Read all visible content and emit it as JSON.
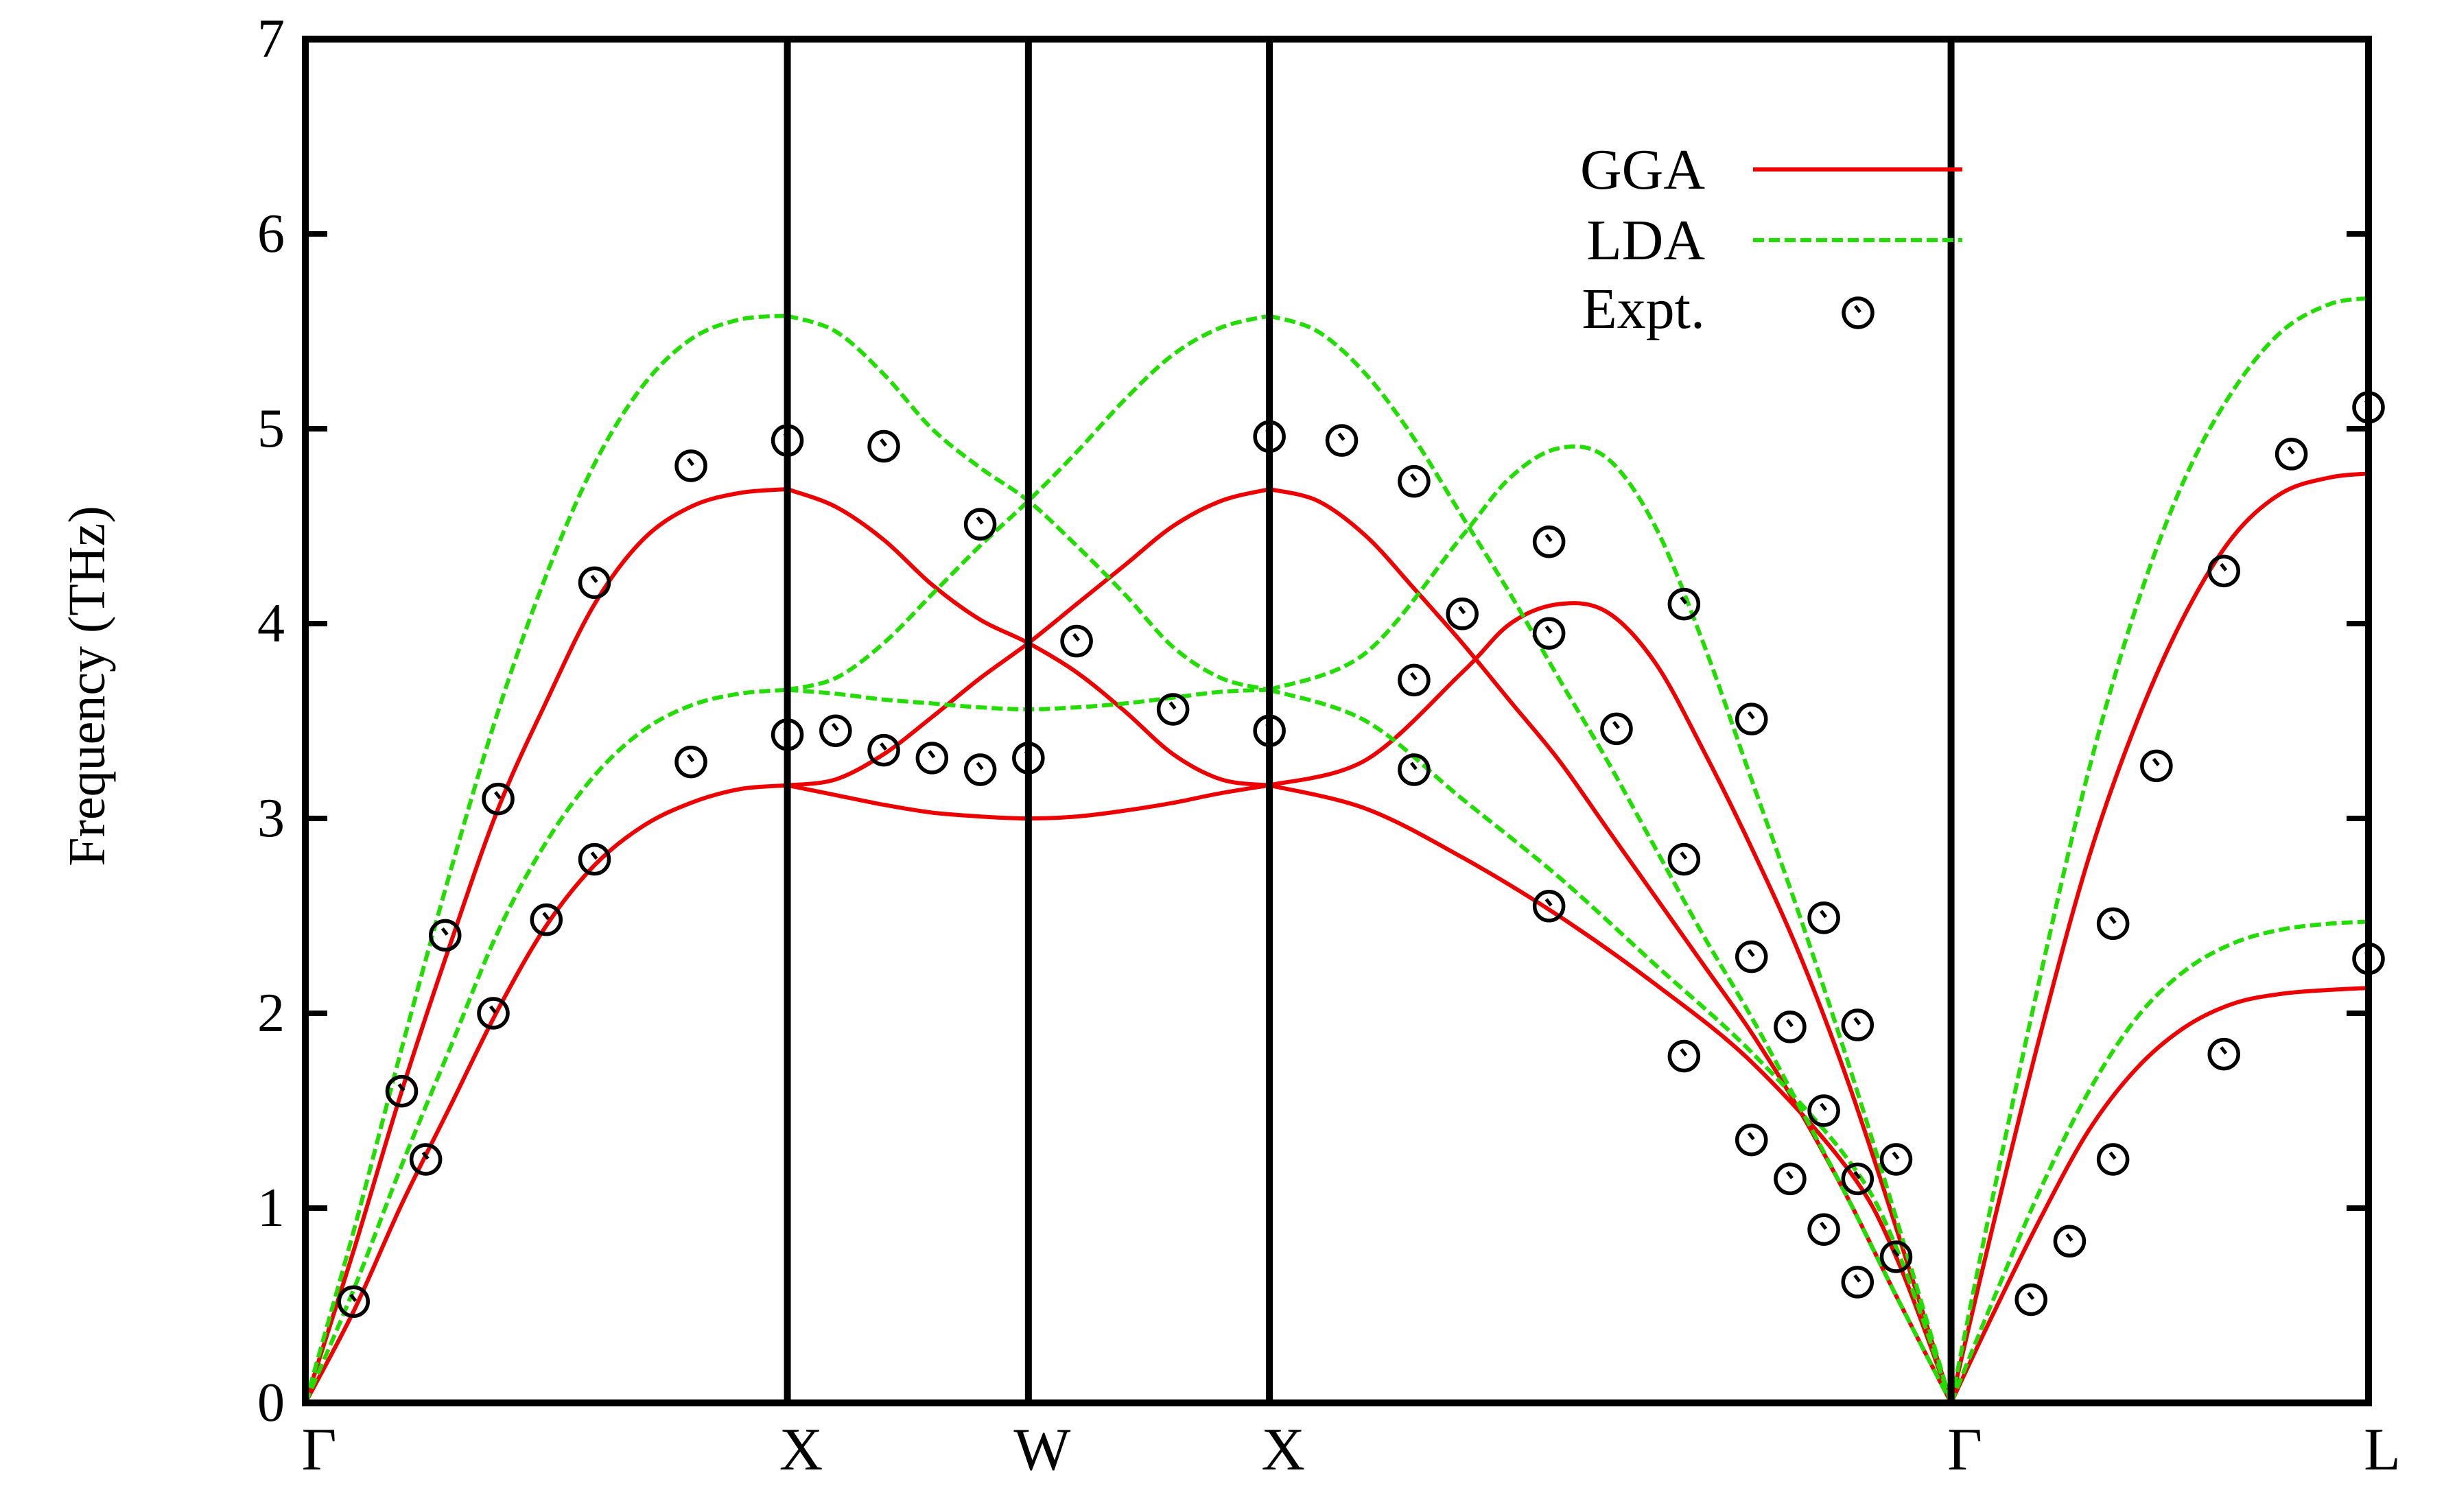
{
  "chart_data": {
    "type": "line",
    "title": "",
    "xlabel": "",
    "ylabel": "Frequency (THz)",
    "ylim": [
      0,
      7
    ],
    "y_ticks": [
      "0",
      "1",
      "2",
      "3",
      "4",
      "5",
      "6",
      "7"
    ],
    "x_ticks": [
      {
        "label": "Γ",
        "x": 0
      },
      {
        "label": "X",
        "x": 1
      },
      {
        "label": "W",
        "x": 1.5
      },
      {
        "label": "X",
        "x": 2
      },
      {
        "label": "Γ",
        "x": 3.414
      },
      {
        "label": "L",
        "x": 4.28
      }
    ],
    "xlim": [
      0,
      4.28
    ],
    "grid": false,
    "legend_position": "top-right",
    "legend": [
      {
        "label": "GGA",
        "color": "#ee0000",
        "style": "solid"
      },
      {
        "label": "LDA",
        "color": "#22dd00",
        "style": "dashed"
      },
      {
        "label": "Expt.",
        "color": "#000000",
        "style": "circle"
      }
    ],
    "colors": {
      "GGA": "#ee0000",
      "LDA": "#22dd00",
      "Expt.": "#000000",
      "axes": "#000000"
    },
    "series": [
      {
        "name": "GGA",
        "kind": "line",
        "points": [
          [
            0,
            0
          ],
          [
            0.1,
            0.47
          ],
          [
            0.2,
            1.02
          ],
          [
            0.3,
            1.52
          ],
          [
            0.4,
            2.02
          ],
          [
            0.5,
            2.45
          ],
          [
            0.6,
            2.76
          ],
          [
            0.7,
            2.96
          ],
          [
            0.8,
            3.08
          ],
          [
            0.9,
            3.15
          ],
          [
            1,
            3.17
          ]
        ]
      },
      {
        "name": "GGA",
        "kind": "line",
        "points": [
          [
            0,
            0
          ],
          [
            0.1,
            0.78
          ],
          [
            0.2,
            1.6
          ],
          [
            0.3,
            2.35
          ],
          [
            0.4,
            3.05
          ],
          [
            0.5,
            3.6
          ],
          [
            0.6,
            4.1
          ],
          [
            0.7,
            4.43
          ],
          [
            0.8,
            4.6
          ],
          [
            0.9,
            4.67
          ],
          [
            1,
            4.69
          ]
        ]
      },
      {
        "name": "GGA",
        "kind": "line",
        "points": [
          [
            1,
            3.17
          ],
          [
            1.1,
            3.12
          ],
          [
            1.2,
            3.07
          ],
          [
            1.3,
            3.03
          ],
          [
            1.4,
            3.01
          ],
          [
            1.5,
            3.0
          ],
          [
            1.6,
            3.01
          ],
          [
            1.7,
            3.04
          ],
          [
            1.8,
            3.08
          ],
          [
            1.9,
            3.13
          ],
          [
            2,
            3.17
          ]
        ]
      },
      {
        "name": "GGA",
        "kind": "line",
        "points": [
          [
            1,
            3.17
          ],
          [
            1.1,
            3.2
          ],
          [
            1.2,
            3.33
          ],
          [
            1.3,
            3.52
          ],
          [
            1.4,
            3.72
          ],
          [
            1.5,
            3.9
          ],
          [
            1.6,
            4.1
          ],
          [
            1.7,
            4.3
          ],
          [
            1.8,
            4.5
          ],
          [
            1.9,
            4.63
          ],
          [
            2,
            4.69
          ]
        ]
      },
      {
        "name": "GGA",
        "kind": "line",
        "points": [
          [
            1,
            4.69
          ],
          [
            1.1,
            4.6
          ],
          [
            1.2,
            4.43
          ],
          [
            1.3,
            4.2
          ],
          [
            1.4,
            4.02
          ],
          [
            1.5,
            3.9
          ],
          [
            1.6,
            3.75
          ],
          [
            1.7,
            3.55
          ],
          [
            1.8,
            3.33
          ],
          [
            1.9,
            3.2
          ],
          [
            2,
            3.17
          ]
        ]
      },
      {
        "name": "GGA",
        "kind": "line",
        "points": [
          [
            2,
            3.17
          ],
          [
            2.2,
            3.05
          ],
          [
            2.4,
            2.8
          ],
          [
            2.6,
            2.5
          ],
          [
            2.8,
            2.15
          ],
          [
            3,
            1.75
          ],
          [
            3.2,
            1.2
          ],
          [
            3.3,
            0.75
          ],
          [
            3.414,
            0
          ]
        ]
      },
      {
        "name": "GGA",
        "kind": "line",
        "points": [
          [
            2,
            4.69
          ],
          [
            2.1,
            4.63
          ],
          [
            2.2,
            4.45
          ],
          [
            2.3,
            4.18
          ],
          [
            2.4,
            3.9
          ],
          [
            2.5,
            3.6
          ],
          [
            2.6,
            3.3
          ],
          [
            2.7,
            2.95
          ],
          [
            2.8,
            2.6
          ],
          [
            2.9,
            2.25
          ],
          [
            3,
            1.9
          ],
          [
            3.1,
            1.5
          ],
          [
            3.2,
            1.05
          ],
          [
            3.3,
            0.55
          ],
          [
            3.414,
            0
          ]
        ]
      },
      {
        "name": "GGA",
        "kind": "line",
        "points": [
          [
            2,
            3.17
          ],
          [
            2.2,
            3.3
          ],
          [
            2.4,
            3.75
          ],
          [
            2.5,
            4.0
          ],
          [
            2.6,
            4.1
          ],
          [
            2.7,
            4.06
          ],
          [
            2.8,
            3.8
          ],
          [
            2.9,
            3.35
          ],
          [
            3,
            2.85
          ],
          [
            3.1,
            2.3
          ],
          [
            3.2,
            1.65
          ],
          [
            3.3,
            0.9
          ],
          [
            3.414,
            0
          ]
        ]
      },
      {
        "name": "GGA",
        "kind": "line",
        "points": [
          [
            3.414,
            0
          ],
          [
            3.5,
            0.45
          ],
          [
            3.6,
            0.95
          ],
          [
            3.7,
            1.4
          ],
          [
            3.8,
            1.72
          ],
          [
            3.9,
            1.93
          ],
          [
            4.0,
            2.05
          ],
          [
            4.1,
            2.1
          ],
          [
            4.2,
            2.12
          ],
          [
            4.28,
            2.13
          ]
        ]
      },
      {
        "name": "GGA",
        "kind": "line",
        "points": [
          [
            3.414,
            0
          ],
          [
            3.5,
            0.9
          ],
          [
            3.6,
            1.9
          ],
          [
            3.7,
            2.8
          ],
          [
            3.8,
            3.5
          ],
          [
            3.9,
            4.05
          ],
          [
            4.0,
            4.45
          ],
          [
            4.1,
            4.67
          ],
          [
            4.2,
            4.75
          ],
          [
            4.28,
            4.77
          ]
        ]
      },
      {
        "name": "LDA",
        "kind": "line",
        "points": [
          [
            0,
            0
          ],
          [
            0.1,
            0.58
          ],
          [
            0.2,
            1.22
          ],
          [
            0.3,
            1.82
          ],
          [
            0.4,
            2.42
          ],
          [
            0.5,
            2.88
          ],
          [
            0.6,
            3.22
          ],
          [
            0.7,
            3.45
          ],
          [
            0.8,
            3.58
          ],
          [
            0.9,
            3.64
          ],
          [
            1,
            3.66
          ]
        ]
      },
      {
        "name": "LDA",
        "kind": "line",
        "points": [
          [
            0,
            0
          ],
          [
            0.1,
            0.88
          ],
          [
            0.2,
            1.82
          ],
          [
            0.3,
            2.72
          ],
          [
            0.4,
            3.55
          ],
          [
            0.5,
            4.25
          ],
          [
            0.6,
            4.82
          ],
          [
            0.7,
            5.22
          ],
          [
            0.8,
            5.46
          ],
          [
            0.9,
            5.56
          ],
          [
            1,
            5.58
          ]
        ]
      },
      {
        "name": "LDA",
        "kind": "line",
        "points": [
          [
            1,
            3.66
          ],
          [
            1.1,
            3.64
          ],
          [
            1.2,
            3.61
          ],
          [
            1.3,
            3.59
          ],
          [
            1.4,
            3.57
          ],
          [
            1.5,
            3.56
          ],
          [
            1.6,
            3.57
          ],
          [
            1.7,
            3.59
          ],
          [
            1.8,
            3.62
          ],
          [
            1.9,
            3.65
          ],
          [
            2,
            3.66
          ]
        ]
      },
      {
        "name": "LDA",
        "kind": "line",
        "points": [
          [
            1,
            3.66
          ],
          [
            1.1,
            3.72
          ],
          [
            1.2,
            3.9
          ],
          [
            1.3,
            4.15
          ],
          [
            1.4,
            4.4
          ],
          [
            1.5,
            4.63
          ],
          [
            1.6,
            4.88
          ],
          [
            1.7,
            5.15
          ],
          [
            1.8,
            5.38
          ],
          [
            1.9,
            5.52
          ],
          [
            2,
            5.58
          ]
        ]
      },
      {
        "name": "LDA",
        "kind": "line",
        "points": [
          [
            1,
            5.58
          ],
          [
            1.1,
            5.5
          ],
          [
            1.2,
            5.28
          ],
          [
            1.3,
            5.0
          ],
          [
            1.4,
            4.8
          ],
          [
            1.5,
            4.63
          ],
          [
            1.6,
            4.4
          ],
          [
            1.7,
            4.15
          ],
          [
            1.8,
            3.88
          ],
          [
            1.9,
            3.72
          ],
          [
            2,
            3.66
          ]
        ]
      },
      {
        "name": "LDA",
        "kind": "line",
        "points": [
          [
            2,
            3.66
          ],
          [
            2.2,
            3.5
          ],
          [
            2.4,
            3.1
          ],
          [
            2.6,
            2.7
          ],
          [
            2.8,
            2.25
          ],
          [
            3,
            1.8
          ],
          [
            3.2,
            1.25
          ],
          [
            3.3,
            0.8
          ],
          [
            3.414,
            0
          ]
        ]
      },
      {
        "name": "LDA",
        "kind": "line",
        "points": [
          [
            2,
            5.58
          ],
          [
            2.1,
            5.5
          ],
          [
            2.2,
            5.28
          ],
          [
            2.3,
            4.95
          ],
          [
            2.4,
            4.55
          ],
          [
            2.5,
            4.15
          ],
          [
            2.6,
            3.72
          ],
          [
            2.7,
            3.3
          ],
          [
            2.8,
            2.85
          ],
          [
            2.9,
            2.4
          ],
          [
            3,
            1.98
          ],
          [
            3.1,
            1.52
          ],
          [
            3.2,
            1.05
          ],
          [
            3.3,
            0.55
          ],
          [
            3.414,
            0
          ]
        ]
      },
      {
        "name": "LDA",
        "kind": "line",
        "points": [
          [
            2,
            3.66
          ],
          [
            2.2,
            3.85
          ],
          [
            2.4,
            4.45
          ],
          [
            2.5,
            4.75
          ],
          [
            2.6,
            4.9
          ],
          [
            2.7,
            4.85
          ],
          [
            2.8,
            4.5
          ],
          [
            2.9,
            3.9
          ],
          [
            3,
            3.2
          ],
          [
            3.1,
            2.5
          ],
          [
            3.2,
            1.75
          ],
          [
            3.3,
            0.95
          ],
          [
            3.414,
            0
          ]
        ]
      },
      {
        "name": "LDA",
        "kind": "line",
        "points": [
          [
            3.414,
            0
          ],
          [
            3.5,
            0.52
          ],
          [
            3.6,
            1.1
          ],
          [
            3.7,
            1.6
          ],
          [
            3.8,
            1.98
          ],
          [
            3.9,
            2.22
          ],
          [
            4.0,
            2.36
          ],
          [
            4.1,
            2.43
          ],
          [
            4.2,
            2.46
          ],
          [
            4.28,
            2.47
          ]
        ]
      },
      {
        "name": "LDA",
        "kind": "line",
        "points": [
          [
            3.414,
            0
          ],
          [
            3.5,
            1.05
          ],
          [
            3.6,
            2.2
          ],
          [
            3.7,
            3.25
          ],
          [
            3.8,
            4.1
          ],
          [
            3.9,
            4.75
          ],
          [
            4.0,
            5.2
          ],
          [
            4.1,
            5.5
          ],
          [
            4.2,
            5.64
          ],
          [
            4.28,
            5.67
          ]
        ]
      },
      {
        "name": "Expt.",
        "kind": "points",
        "points": [
          [
            0.1,
            0.52
          ],
          [
            0.2,
            1.6
          ],
          [
            0.25,
            1.25
          ],
          [
            0.29,
            2.4
          ],
          [
            0.39,
            2.0
          ],
          [
            0.4,
            3.1
          ],
          [
            0.5,
            2.48
          ],
          [
            0.6,
            2.79
          ],
          [
            0.6,
            4.21
          ],
          [
            0.8,
            3.29
          ],
          [
            0.8,
            4.81
          ],
          [
            1,
            3.43
          ],
          [
            1,
            4.94
          ],
          [
            1.1,
            3.45
          ],
          [
            1.2,
            4.91
          ],
          [
            1.2,
            3.35
          ],
          [
            1.3,
            3.31
          ],
          [
            1.4,
            3.25
          ],
          [
            1.4,
            4.51
          ],
          [
            1.5,
            3.31
          ],
          [
            1.6,
            3.91
          ],
          [
            1.8,
            3.56
          ],
          [
            2,
            3.45
          ],
          [
            2,
            4.96
          ],
          [
            2.15,
            4.94
          ],
          [
            2.3,
            3.25
          ],
          [
            2.3,
            4.73
          ],
          [
            2.3,
            3.71
          ],
          [
            2.4,
            4.05
          ],
          [
            2.58,
            2.55
          ],
          [
            2.58,
            3.95
          ],
          [
            2.58,
            4.42
          ],
          [
            2.72,
            3.46
          ],
          [
            2.86,
            1.78
          ],
          [
            2.86,
            2.79
          ],
          [
            2.86,
            4.1
          ],
          [
            3.0,
            1.35
          ],
          [
            3.0,
            2.29
          ],
          [
            3.0,
            3.51
          ],
          [
            3.08,
            1.15
          ],
          [
            3.08,
            1.93
          ],
          [
            3.15,
            0.89
          ],
          [
            3.15,
            1.5
          ],
          [
            3.15,
            2.49
          ],
          [
            3.22,
            0.62
          ],
          [
            3.22,
            1.15
          ],
          [
            3.22,
            1.94
          ],
          [
            3.3,
            0.75
          ],
          [
            3.3,
            1.25
          ],
          [
            3.58,
            0.53
          ],
          [
            3.66,
            0.83
          ],
          [
            3.75,
            1.25
          ],
          [
            3.75,
            2.46
          ],
          [
            3.84,
            3.27
          ],
          [
            3.98,
            1.79
          ],
          [
            3.98,
            4.27
          ],
          [
            4.12,
            4.87
          ],
          [
            4.28,
            2.28
          ],
          [
            4.28,
            5.11
          ]
        ]
      }
    ]
  }
}
